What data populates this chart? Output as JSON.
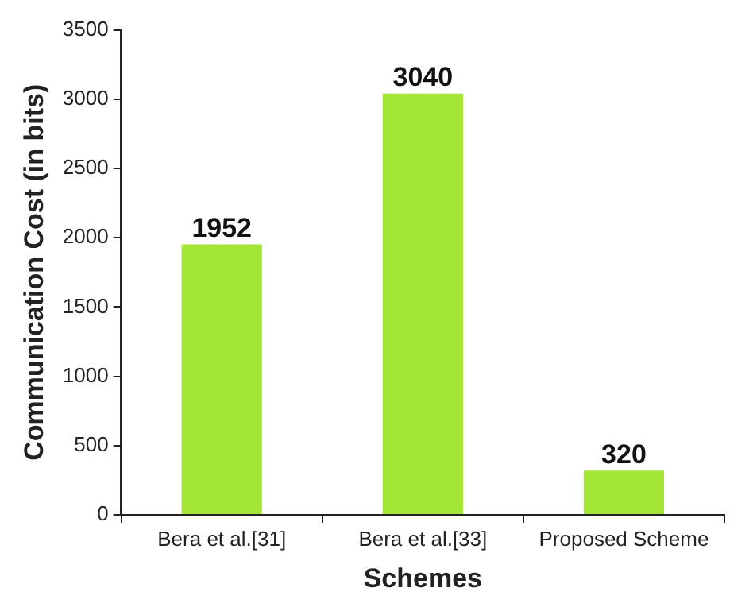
{
  "chart_data": {
    "type": "bar",
    "xlabel": "Schemes",
    "ylabel": "Communication Cost (in bits)",
    "categories": [
      "Bera et al.[31]",
      "Bera et al.[33]",
      "Proposed Scheme"
    ],
    "values": [
      1952,
      3040,
      320
    ],
    "color": "#a4e636",
    "ylim": [
      0,
      3500
    ],
    "yticks": [
      0,
      500,
      1000,
      1500,
      2000,
      2500,
      3000,
      3500
    ],
    "grid": false,
    "legend": false,
    "data_labels": true
  }
}
